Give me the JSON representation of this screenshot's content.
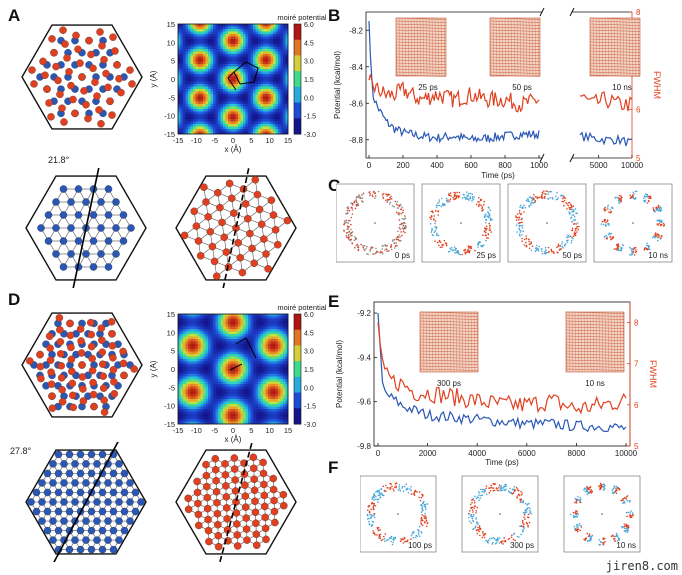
{
  "panels": {
    "A": {
      "letter": "A",
      "colorbar_title": "moiré potential",
      "angle": "21.8°",
      "x_label": "x (Å)",
      "y_label": "y (Å)",
      "colorbar_ticks": [
        "6.0",
        "4.5",
        "3.0",
        "1.5",
        "0.0",
        "-1.5",
        "-3.0"
      ],
      "x_ticks": [
        "-15",
        "-10",
        "-5",
        "0",
        "5",
        "10",
        "15"
      ],
      "y_ticks": [
        "15",
        "10",
        "5",
        "0",
        "-5",
        "-10",
        "-15"
      ]
    },
    "B": {
      "letter": "B",
      "ylabel_left": "Potential (kcal/mol)",
      "ylabel_right": "FWHM",
      "xlabel": "Time (ps)",
      "left_ticks": [
        "-8.2",
        "-8.4",
        "-8.6",
        "-8.8"
      ],
      "right_ticks": [
        "8",
        "7",
        "6",
        "5"
      ],
      "x_ticks_a": [
        "0",
        "200",
        "400",
        "600",
        "800",
        "1000"
      ],
      "x_ticks_b": [
        "5000",
        "10000"
      ],
      "inset_labels": [
        "25 ps",
        "50 ps",
        "10 ns"
      ]
    },
    "C": {
      "letter": "C",
      "snapshot_labels": [
        "0 ps",
        "25 ps",
        "50 ps",
        "10 ns"
      ]
    },
    "D": {
      "letter": "D",
      "colorbar_title": "moiré potential",
      "angle": "27.8°",
      "x_label": "x (Å)",
      "y_label": "y (Å)",
      "colorbar_ticks": [
        "6.0",
        "4.5",
        "3.0",
        "1.5",
        "0.0",
        "-1.5",
        "-3.0"
      ],
      "x_ticks": [
        "-15",
        "-10",
        "-5",
        "0",
        "5",
        "10",
        "15"
      ],
      "y_ticks": [
        "15",
        "10",
        "5",
        "0",
        "-5",
        "-10",
        "-15"
      ]
    },
    "E": {
      "letter": "E",
      "ylabel_left": "Potential (kcal/mol)",
      "ylabel_right": "FWHM",
      "xlabel": "Time (ps)",
      "left_ticks": [
        "-9.2",
        "-9.4",
        "-9.6",
        "-9.8"
      ],
      "right_ticks": [
        "8",
        "7",
        "6",
        "5"
      ],
      "x_ticks": [
        "0",
        "2000",
        "4000",
        "6000",
        "8000",
        "10000"
      ],
      "inset_labels": [
        "300 ps",
        "10 ns"
      ]
    },
    "F": {
      "letter": "F",
      "snapshot_labels": [
        "100 ps",
        "300 ps",
        "10 ns"
      ]
    }
  },
  "watermark": "jiren8.com",
  "colors": {
    "blue": "#2a57b5",
    "red": "#e0401f"
  },
  "chart_data": [
    {
      "type": "line",
      "panel": "B",
      "xlabel": "Time (ps)",
      "ylabel": "Potential (kcal/mol)",
      "ylabel_right": "FWHM",
      "ylim": [
        -8.9,
        -8.1
      ],
      "ylim_right": [
        5,
        8
      ],
      "series": [
        {
          "name": "",
          "axis": "left",
          "x": [
            0,
            20,
            50,
            100,
            150,
            200,
            300,
            400,
            500,
            600,
            700,
            800,
            900,
            1000,
            2000,
            4000,
            6000,
            8000,
            10000
          ],
          "values": [
            -8.15,
            -8.55,
            -8.62,
            -8.7,
            -8.74,
            -8.76,
            -8.78,
            -8.79,
            -8.78,
            -8.8,
            -8.79,
            -8.78,
            -8.77,
            -8.77,
            -8.78,
            -8.79,
            -8.8,
            -8.8,
            -8.82
          ]
        },
        {
          "name": "",
          "axis": "right",
          "x": [
            0,
            20,
            50,
            100,
            150,
            200,
            300,
            400,
            500,
            600,
            700,
            800,
            900,
            1000,
            2000,
            4000,
            6000,
            8000,
            10000
          ],
          "values": [
            6.6,
            6.5,
            6.4,
            6.3,
            6.3,
            6.4,
            6.2,
            6.3,
            6.2,
            6.3,
            6.2,
            6.2,
            6.1,
            6.2,
            6.3,
            6.1,
            6.2,
            6.1,
            6.1
          ]
        }
      ]
    },
    {
      "type": "line",
      "panel": "E",
      "xlabel": "Time (ps)",
      "ylabel": "Potential (kcal/mol)",
      "ylabel_right": "FWHM",
      "ylim": [
        -9.8,
        -9.15
      ],
      "ylim_right": [
        5,
        8.5
      ],
      "series": [
        {
          "name": "",
          "axis": "left",
          "x": [
            0,
            200,
            500,
            1000,
            1500,
            2000,
            3000,
            4000,
            5000,
            6000,
            7000,
            8000,
            9000,
            10000
          ],
          "values": [
            -9.2,
            -9.55,
            -9.58,
            -9.62,
            -9.64,
            -9.66,
            -9.67,
            -9.68,
            -9.69,
            -9.7,
            -9.7,
            -9.71,
            -9.71,
            -9.72
          ]
        },
        {
          "name": "",
          "axis": "right",
          "x": [
            0,
            200,
            500,
            1000,
            1500,
            2000,
            3000,
            4000,
            5000,
            6000,
            7000,
            8000,
            9000,
            10000
          ],
          "values": [
            8.0,
            6.8,
            6.6,
            6.5,
            6.3,
            6.3,
            6.2,
            6.1,
            6.0,
            6.0,
            6.1,
            5.9,
            6.0,
            6.1
          ]
        }
      ]
    }
  ]
}
